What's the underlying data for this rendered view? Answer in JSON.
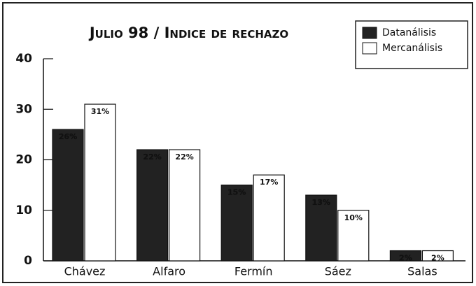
{
  "chart_data": {
    "type": "bar",
    "title": "Julio 98 / Indice de rechazo",
    "categories": [
      "Chávez",
      "Alfaro",
      "Fermín",
      "Sáez",
      "Salas"
    ],
    "series": [
      {
        "name": "Datanálisis",
        "color": "#222222",
        "values": [
          26,
          22,
          15,
          13,
          2
        ],
        "value_labels": [
          "26%",
          "22%",
          "15%",
          "13%",
          "2%"
        ]
      },
      {
        "name": "Mercanálisis",
        "color": "#ffffff",
        "values": [
          31,
          22,
          17,
          10,
          2
        ],
        "value_labels": [
          "31%",
          "22%",
          "17%",
          "10%",
          "2%"
        ]
      }
    ],
    "ylim": [
      0,
      40
    ],
    "yticks": [
      0,
      10,
      20,
      30,
      40
    ],
    "grid": false,
    "legend": "top-right"
  }
}
